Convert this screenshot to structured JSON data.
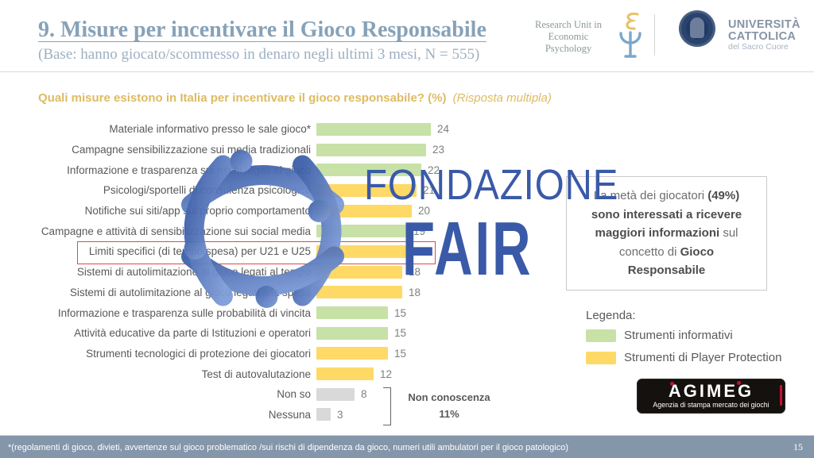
{
  "slide": {
    "title": "9. Misure per incentivare il Gioco Responsabile",
    "subtitle": "(Base: hanno giocato/scommesso in denaro negli ultimi 3 mesi, N = 555)",
    "footnote": "*(regolamenti di gioco, divieti, avvertenze sul gioco problematico /sui rischi di dipendenza da gioco, numeri utili ambulatori per il gioco patologico)",
    "page_number": "15"
  },
  "header_logos": {
    "research_unit": {
      "line1": "Research Unit in",
      "line2": "Economic",
      "line3": "Psychology"
    },
    "university": {
      "line1": "UNIVERSITÀ",
      "line2": "CATTOLICA",
      "line3": "del Sacro Cuore"
    }
  },
  "question": {
    "text": "Quali misure esistono in Italia per incentivare il gioco responsabile? (%)",
    "suffix": "(Risposta multipla)"
  },
  "chart_data": {
    "type": "bar",
    "orientation": "horizontal",
    "unit": "%",
    "title": "Quali misure esistono in Italia per incentivare il gioco responsabile? (%)",
    "categories": [
      "Materiale informativo presso le sale gioco*",
      "Campagne sensibilizzazione sui media tradizionali",
      "Informazione e trasparenza sui rischi legati al gioco",
      "Psicologi/sportelli di consulenza psicologica",
      "Notifiche sui siti/app sul proprio comportamento",
      "Campagne e attività di sensibilizzazione sui social media",
      "Limiti specifici (di tempo/spesa) per U21 e U25",
      "Sistemi di autolimitazione al gioco legati al tempo",
      "Sistemi di autolimitazione al gioco legati alla spesa",
      "Informazione e trasparenza sulle probabilità di vincita",
      "Attività educative da parte di Istituzioni e operatori",
      "Strumenti tecnologici di protezione dei giocatori",
      "Test di autovalutazione",
      "Non so",
      "Nessuna"
    ],
    "values": [
      24,
      23,
      22,
      21,
      20,
      19,
      19,
      18,
      18,
      15,
      15,
      15,
      12,
      8,
      3
    ],
    "series_type": [
      "informativi",
      "informativi",
      "informativi",
      "protection",
      "protection",
      "informativi",
      "protection",
      "protection",
      "protection",
      "informativi",
      "informativi",
      "protection",
      "protection",
      "none",
      "none"
    ],
    "colors": {
      "informativi": "#c7e1a7",
      "protection": "#fed966",
      "none": "#d9d9d9"
    },
    "xlim": [
      0,
      26
    ],
    "grid": false,
    "highlighted_category": "Limiti specifici (di tempo/spesa) per U21 e U25",
    "highlight_color": "#dd4b42",
    "annotation": {
      "label": "Non conoscenza",
      "value": "11%",
      "applies_to": [
        "Non so",
        "Nessuna"
      ]
    }
  },
  "infobox": {
    "lines": [
      [
        {
          "t": "La metà dei giocatori ",
          "b": false
        },
        {
          "t": "(49%)",
          "b": true
        }
      ],
      [
        {
          "t": "sono interessati a ricevere",
          "b": true
        }
      ],
      [
        {
          "t": "maggiori informazioni",
          "b": true
        },
        {
          "t": " sul",
          "b": false
        }
      ],
      [
        {
          "t": "concetto di ",
          "b": false
        },
        {
          "t": "Gioco",
          "b": true
        }
      ],
      [
        {
          "t": "Responsabile",
          "b": true
        }
      ]
    ]
  },
  "legend": {
    "title": "Legenda:",
    "items": [
      {
        "label": "Strumenti informativi",
        "color": "#c7e1a7"
      },
      {
        "label": "Strumenti di Player Protection",
        "color": "#fed966"
      }
    ]
  },
  "watermark": {
    "line1": "FONDAZIONE",
    "line2": "FAIR"
  },
  "agimeg": {
    "name": "AGIMEG",
    "tagline": "Agenzia di stampa mercato dei giochi"
  }
}
